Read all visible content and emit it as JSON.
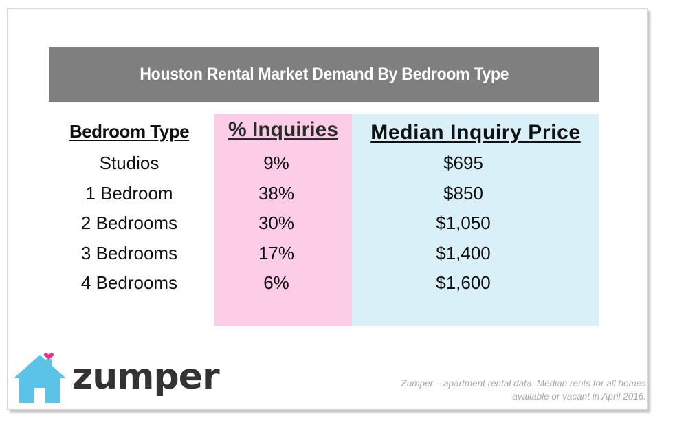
{
  "title": "Houston Rental Market Demand By Bedroom Type",
  "headers": {
    "bedroom_type": "Bedroom Type",
    "inquiries": "% Inquiries",
    "median_price": "Median Inquiry Price"
  },
  "rows": [
    {
      "type": "Studios",
      "inquiries": "9%",
      "price": "$695"
    },
    {
      "type": "1 Bedroom",
      "inquiries": "38%",
      "price": "$850"
    },
    {
      "type": "2 Bedrooms",
      "inquiries": "30%",
      "price": "$1,050"
    },
    {
      "type": "3 Bedrooms",
      "inquiries": "17%",
      "price": "$1,400"
    },
    {
      "type": "4 Bedrooms",
      "inquiries": "6%",
      "price": "$1,600"
    }
  ],
  "logo": {
    "wordmark": "zumper",
    "icon": "house-heart-icon",
    "house_color": "#5bc3e8",
    "heart_color": "#e8328c"
  },
  "footnote": {
    "line1": "Zumper – apartment rental data. Median rents for all homes",
    "line2": "available or vacant in April 2016."
  },
  "colors": {
    "title_bar": "#7f7f7f",
    "inquiries_column": "#fdcde8",
    "price_column": "#daf0f8"
  },
  "chart_data": {
    "type": "table",
    "title": "Houston Rental Market Demand By Bedroom Type",
    "columns": [
      "Bedroom Type",
      "% Inquiries",
      "Median Inquiry Price"
    ],
    "rows": [
      [
        "Studios",
        "9%",
        "$695"
      ],
      [
        "1 Bedroom",
        "38%",
        "$850"
      ],
      [
        "2 Bedrooms",
        "30%",
        "$1,050"
      ],
      [
        "3 Bedrooms",
        "17%",
        "$1,400"
      ],
      [
        "4 Bedrooms",
        "6%",
        "$1,600"
      ]
    ]
  }
}
